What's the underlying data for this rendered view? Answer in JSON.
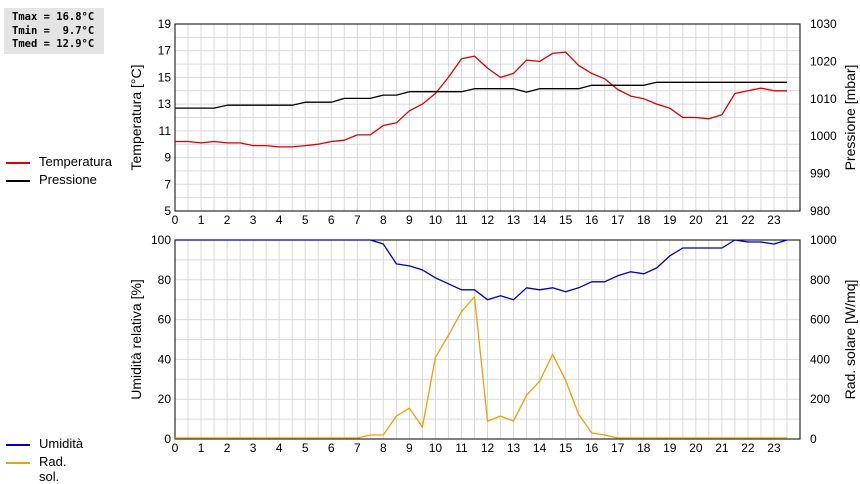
{
  "stats": {
    "tmax": "Tmax = 16.8°C",
    "tmin": "Tmin =  9.7°C",
    "tmed": "Tmed = 12.9°C"
  },
  "colors": {
    "temperature": "#dd0000",
    "pressure": "#000000",
    "humidity": "#0000bb",
    "radiation": "#f0a000",
    "grid": "#d9d9d9"
  },
  "chart_data": [
    {
      "type": "line",
      "grid": true,
      "legend_position": "left",
      "xlim": [
        0,
        24
      ],
      "x_ticks": [
        0,
        1,
        2,
        3,
        4,
        5,
        6,
        7,
        8,
        9,
        10,
        11,
        12,
        13,
        14,
        15,
        16,
        17,
        18,
        19,
        20,
        21,
        22,
        23
      ],
      "y_left": {
        "label": "Temperatura [°C]",
        "range": [
          5,
          19
        ],
        "ticks": [
          5,
          7,
          9,
          11,
          13,
          15,
          17,
          19
        ]
      },
      "y_right": {
        "label": "Pressione [mbar]",
        "range": [
          980,
          1030
        ],
        "ticks": [
          980,
          990,
          1000,
          1010,
          1020,
          1030
        ]
      },
      "series": [
        {
          "name": "Temperatura",
          "axis": "left",
          "x": [
            0,
            0.5,
            1,
            1.5,
            2,
            2.5,
            3,
            3.5,
            4,
            4.5,
            5,
            5.5,
            6,
            6.5,
            7,
            7.5,
            8,
            8.5,
            9,
            9.5,
            10,
            10.5,
            11,
            11.5,
            12,
            12.5,
            13,
            13.5,
            14,
            14.5,
            15,
            15.5,
            16,
            16.5,
            17,
            17.5,
            18,
            18.5,
            19,
            19.5,
            20,
            20.5,
            21,
            21.5,
            22,
            22.5,
            23,
            23.5
          ],
          "values": [
            10.2,
            10.2,
            10.1,
            10.2,
            10.1,
            10.1,
            9.9,
            9.9,
            9.8,
            9.8,
            9.9,
            10.0,
            10.2,
            10.3,
            10.7,
            10.7,
            11.4,
            11.6,
            12.5,
            13.0,
            13.8,
            15.0,
            16.4,
            16.6,
            15.7,
            15.0,
            15.3,
            16.3,
            16.2,
            16.8,
            16.9,
            15.9,
            15.3,
            14.9,
            14.1,
            13.6,
            13.4,
            13.0,
            12.7,
            12.0,
            12.0,
            11.9,
            12.2,
            13.8,
            14.0,
            14.2,
            14.0,
            14.0
          ]
        },
        {
          "name": "Pressione",
          "axis": "right",
          "x": [
            0,
            0.5,
            1,
            1.5,
            2,
            2.5,
            3,
            3.5,
            4,
            4.5,
            5,
            5.5,
            6,
            6.5,
            7,
            7.5,
            8,
            8.5,
            9,
            9.5,
            10,
            10.5,
            11,
            11.5,
            12,
            12.5,
            13,
            13.5,
            14,
            14.5,
            15,
            15.5,
            16,
            16.5,
            17,
            17.5,
            18,
            18.5,
            19,
            19.5,
            20,
            20.5,
            21,
            21.5,
            22,
            22.5,
            23,
            23.5
          ],
          "values": [
            1007.5,
            1007.5,
            1007.5,
            1007.5,
            1008.3,
            1008.3,
            1008.3,
            1008.3,
            1008.3,
            1008.3,
            1009.1,
            1009.1,
            1009.1,
            1010.1,
            1010.1,
            1010.1,
            1011.0,
            1011.0,
            1011.9,
            1011.9,
            1011.9,
            1011.9,
            1011.9,
            1012.7,
            1012.7,
            1012.7,
            1012.7,
            1011.8,
            1012.7,
            1012.7,
            1012.7,
            1012.7,
            1013.6,
            1013.6,
            1013.6,
            1013.6,
            1013.6,
            1014.4,
            1014.4,
            1014.4,
            1014.4,
            1014.4,
            1014.4,
            1014.4,
            1014.4,
            1014.4,
            1014.4,
            1014.4
          ]
        }
      ]
    },
    {
      "type": "line",
      "grid": true,
      "legend_position": "left",
      "xlim": [
        0,
        24
      ],
      "x_ticks": [
        0,
        1,
        2,
        3,
        4,
        5,
        6,
        7,
        8,
        9,
        10,
        11,
        12,
        13,
        14,
        15,
        16,
        17,
        18,
        19,
        20,
        21,
        22,
        23
      ],
      "y_left": {
        "label": "Umidità relativa [%]",
        "range": [
          0,
          100
        ],
        "ticks": [
          0,
          20,
          40,
          60,
          80,
          100
        ]
      },
      "y_right": {
        "label": "Rad. solare [W/mq]",
        "range": [
          0,
          1000
        ],
        "ticks": [
          0,
          200,
          400,
          600,
          800,
          1000
        ]
      },
      "series": [
        {
          "name": "Umidità",
          "axis": "left",
          "x": [
            0,
            0.5,
            1,
            1.5,
            2,
            2.5,
            3,
            3.5,
            4,
            4.5,
            5,
            5.5,
            6,
            6.5,
            7,
            7.5,
            8,
            8.5,
            9,
            9.5,
            10,
            10.5,
            11,
            11.5,
            12,
            12.5,
            13,
            13.5,
            14,
            14.5,
            15,
            15.5,
            16,
            16.5,
            17,
            17.5,
            18,
            18.5,
            19,
            19.5,
            20,
            20.5,
            21,
            21.5,
            22,
            22.5,
            23,
            23.5
          ],
          "values": [
            100,
            100,
            100,
            100,
            100,
            100,
            100,
            100,
            100,
            100,
            100,
            100,
            100,
            100,
            100,
            100,
            98,
            88,
            87,
            85,
            81,
            78,
            75,
            75,
            70,
            72,
            70,
            76,
            75,
            76,
            74,
            76,
            79,
            79,
            82,
            84,
            83,
            86,
            92,
            96,
            96,
            96,
            96,
            100,
            99,
            99,
            98,
            100
          ]
        },
        {
          "name": "Rad. sol.",
          "axis": "right",
          "x": [
            0,
            0.5,
            1,
            1.5,
            2,
            2.5,
            3,
            3.5,
            4,
            4.5,
            5,
            5.5,
            6,
            6.5,
            7,
            7.5,
            8,
            8.5,
            9,
            9.5,
            10,
            10.5,
            11,
            11.5,
            12,
            12.5,
            13,
            13.5,
            14,
            14.5,
            15,
            15.5,
            16,
            16.5,
            17,
            17.5,
            18,
            18.5,
            19,
            19.5,
            20,
            20.5,
            21,
            21.5,
            22,
            22.5,
            23,
            23.5
          ],
          "values": [
            5,
            5,
            5,
            5,
            5,
            5,
            5,
            5,
            5,
            5,
            5,
            5,
            5,
            5,
            5,
            20,
            20,
            115,
            155,
            60,
            410,
            520,
            640,
            715,
            90,
            115,
            90,
            220,
            290,
            425,
            295,
            125,
            30,
            20,
            5,
            5,
            5,
            5,
            5,
            5,
            5,
            5,
            5,
            5,
            5,
            5,
            5,
            5
          ]
        }
      ]
    }
  ],
  "legend": [
    {
      "name": "Temperatura",
      "color": "#dd0000"
    },
    {
      "name": "Pressione",
      "color": "#000000"
    },
    {
      "name": "Umidità",
      "color": "#0000bb"
    },
    {
      "name": "Rad. sol.",
      "color": "#f0a000"
    }
  ]
}
